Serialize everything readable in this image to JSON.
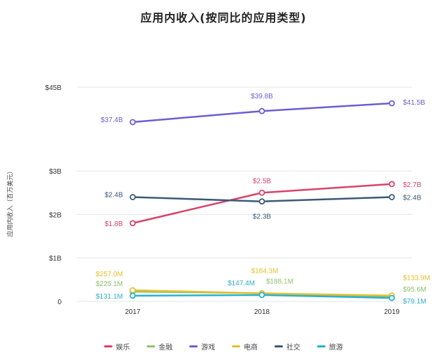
{
  "chart_data": {
    "type": "line",
    "title": "应用内收入(按同比的应用类型)",
    "ylabel": "应用内收入（百万美元）",
    "xlabel": "",
    "categories": [
      "2017",
      "2018",
      "2019"
    ],
    "y_ticks": [
      "0",
      "$1B",
      "$2B",
      "$3B",
      "$45B"
    ],
    "y_scale": "broken axis: 0–3B linear, gap, top tick $45B",
    "grid": true,
    "legend_position": "bottom",
    "series": [
      {
        "name": "娱乐",
        "color": "#d6436a",
        "values": [
          1800,
          2500,
          2700
        ],
        "labels": [
          "$1.8B",
          "$2.5B",
          "$2.7B"
        ]
      },
      {
        "name": "金融",
        "color": "#8cc36b",
        "values": [
          225.1,
          188.1,
          95.6
        ],
        "labels": [
          "$225.1M",
          "$188.1M",
          "$95.6M"
        ]
      },
      {
        "name": "游戏",
        "color": "#6a5fcf",
        "values": [
          37400,
          39800,
          41500
        ],
        "labels": [
          "$37.4B",
          "$39.8B",
          "$41.5B"
        ]
      },
      {
        "name": "电商",
        "color": "#e3c12f",
        "values": [
          257.0,
          184.3,
          133.9
        ],
        "labels": [
          "$257.0M",
          "$184.3M",
          "$133.9M"
        ]
      },
      {
        "name": "社交",
        "color": "#3b5976",
        "values": [
          2400,
          2300,
          2400
        ],
        "labels": [
          "$2.4B",
          "$2.3B",
          "$2.4B"
        ]
      },
      {
        "name": "旅游",
        "color": "#2bb0cf",
        "values": [
          131.1,
          147.4,
          79.1
        ],
        "labels": [
          "$131.1M",
          "$147.4M",
          "$79.1M"
        ]
      }
    ]
  }
}
